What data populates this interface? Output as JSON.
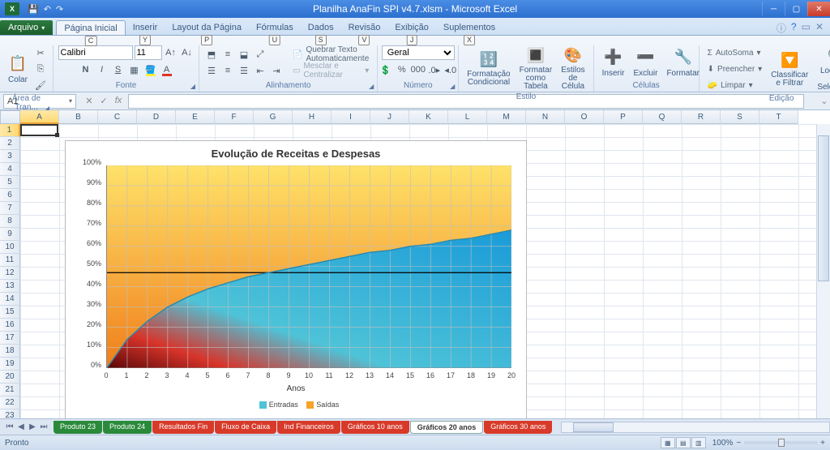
{
  "titlebar": {
    "title": "Planilha AnaFin SPI v4.7.xlsm - Microsoft Excel",
    "app_icon": "X"
  },
  "qat_shortcuts": [
    "1",
    "2",
    "3"
  ],
  "file_tab": "Arquivo",
  "ribbon_tabs": [
    {
      "label": "Página Inicial",
      "key": "C",
      "active": true
    },
    {
      "label": "Inserir",
      "key": "Y"
    },
    {
      "label": "Layout da Página",
      "key": "P"
    },
    {
      "label": "Fórmulas",
      "key": "U"
    },
    {
      "label": "Dados",
      "key": "S"
    },
    {
      "label": "Revisão",
      "key": "V"
    },
    {
      "label": "Exibição",
      "key": "J"
    },
    {
      "label": "Suplementos",
      "key": "X"
    }
  ],
  "ribbon": {
    "clipboard": {
      "label": "Área de Tran...",
      "paste": "Colar"
    },
    "font": {
      "label": "Fonte",
      "family": "Calibri",
      "size": "11"
    },
    "align": {
      "label": "Alinhamento",
      "wrap": "Quebrar Texto Automaticamente",
      "merge": "Mesclar e Centralizar"
    },
    "number": {
      "label": "Número",
      "format": "Geral"
    },
    "styles": {
      "label": "Estilo",
      "cond": "Formatação Condicional",
      "table": "Formatar como Tabela",
      "cell": "Estilos de Célula"
    },
    "cells": {
      "label": "Células",
      "insert": "Inserir",
      "delete": "Excluir",
      "format": "Formatar"
    },
    "editing": {
      "label": "Edição",
      "autosum": "AutoSoma",
      "fill": "Preencher",
      "clear": "Limpar",
      "sort": "Classificar e Filtrar",
      "find": "Localizar e Selecionar"
    }
  },
  "formula_bar": {
    "namebox": "A1",
    "fx": "fx"
  },
  "columns": [
    "A",
    "B",
    "C",
    "D",
    "E",
    "F",
    "G",
    "H",
    "I",
    "J",
    "K",
    "L",
    "M",
    "N",
    "O",
    "P",
    "Q",
    "R",
    "S",
    "T"
  ],
  "row_count": 23,
  "chart": {
    "title": "Evolução de Receitas e Despesas",
    "x_axis_title": "Anos",
    "x_ticks": [
      0,
      1,
      2,
      3,
      4,
      5,
      6,
      7,
      8,
      9,
      10,
      11,
      12,
      13,
      14,
      15,
      16,
      17,
      18,
      19,
      20
    ],
    "y_ticks": [
      "0%",
      "10%",
      "20%",
      "30%",
      "40%",
      "50%",
      "60%",
      "70%",
      "80%",
      "90%",
      "100%"
    ],
    "series": [
      {
        "name": "Entradas",
        "color": "#4ec3d8"
      },
      {
        "name": "Saídas",
        "color": "#f6a328"
      }
    ],
    "entradas_values": [
      0,
      14,
      23,
      30,
      35,
      39,
      42,
      45,
      47,
      49,
      51,
      53,
      55,
      57,
      58,
      60,
      61,
      63,
      64,
      66,
      68
    ],
    "ref_line_y": 47,
    "gradient_top": {
      "from": "#ffe26a",
      "to": "#f07e1a"
    },
    "gradient_bottom_left": {
      "from": "#5a0808",
      "mid": "#d8342a",
      "to": "#4ec3d8"
    },
    "plot_bg": "#ffffff",
    "grid_color": "#bfbfbf"
  },
  "sheet_tabs": [
    {
      "label": "Produto 23",
      "cls": "green"
    },
    {
      "label": "Produto 24",
      "cls": "green"
    },
    {
      "label": "Resultados Fin",
      "cls": "red"
    },
    {
      "label": "Fluxo de Caixa",
      "cls": "red"
    },
    {
      "label": "Ind Financeiros",
      "cls": "red"
    },
    {
      "label": "Gráficos 10 anos",
      "cls": "red"
    },
    {
      "label": "Gráficos 20 anos",
      "cls": "active"
    },
    {
      "label": "Gráficos 30 anos",
      "cls": "red"
    }
  ],
  "statusbar": {
    "ready": "Pronto",
    "zoom": "100%"
  }
}
